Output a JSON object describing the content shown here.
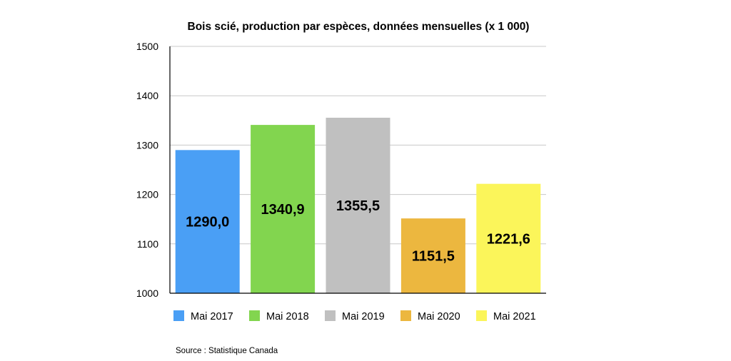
{
  "chart_data": {
    "type": "bar",
    "title": "Bois scié, production par espèces, données mensuelles (x 1 000)",
    "categories": [
      "Mai 2017",
      "Mai 2018",
      "Mai 2019",
      "Mai 2020",
      "Mai 2021"
    ],
    "values": [
      1290.0,
      1340.9,
      1355.5,
      1151.5,
      1221.6
    ],
    "data_labels": [
      "1290,0",
      "1340,9",
      "1355,5",
      "1151,5",
      "1221,6"
    ],
    "colors": [
      "#4a9ff5",
      "#82d54f",
      "#c0c0c0",
      "#ecb73f",
      "#fbf55a"
    ],
    "ylim": [
      1000,
      1500
    ],
    "yticks": [
      1000,
      1100,
      1200,
      1300,
      1400,
      1500
    ],
    "xlabel": "",
    "ylabel": "",
    "grid": true,
    "legend": "bottom",
    "source": "Source : Statistique Canada"
  }
}
